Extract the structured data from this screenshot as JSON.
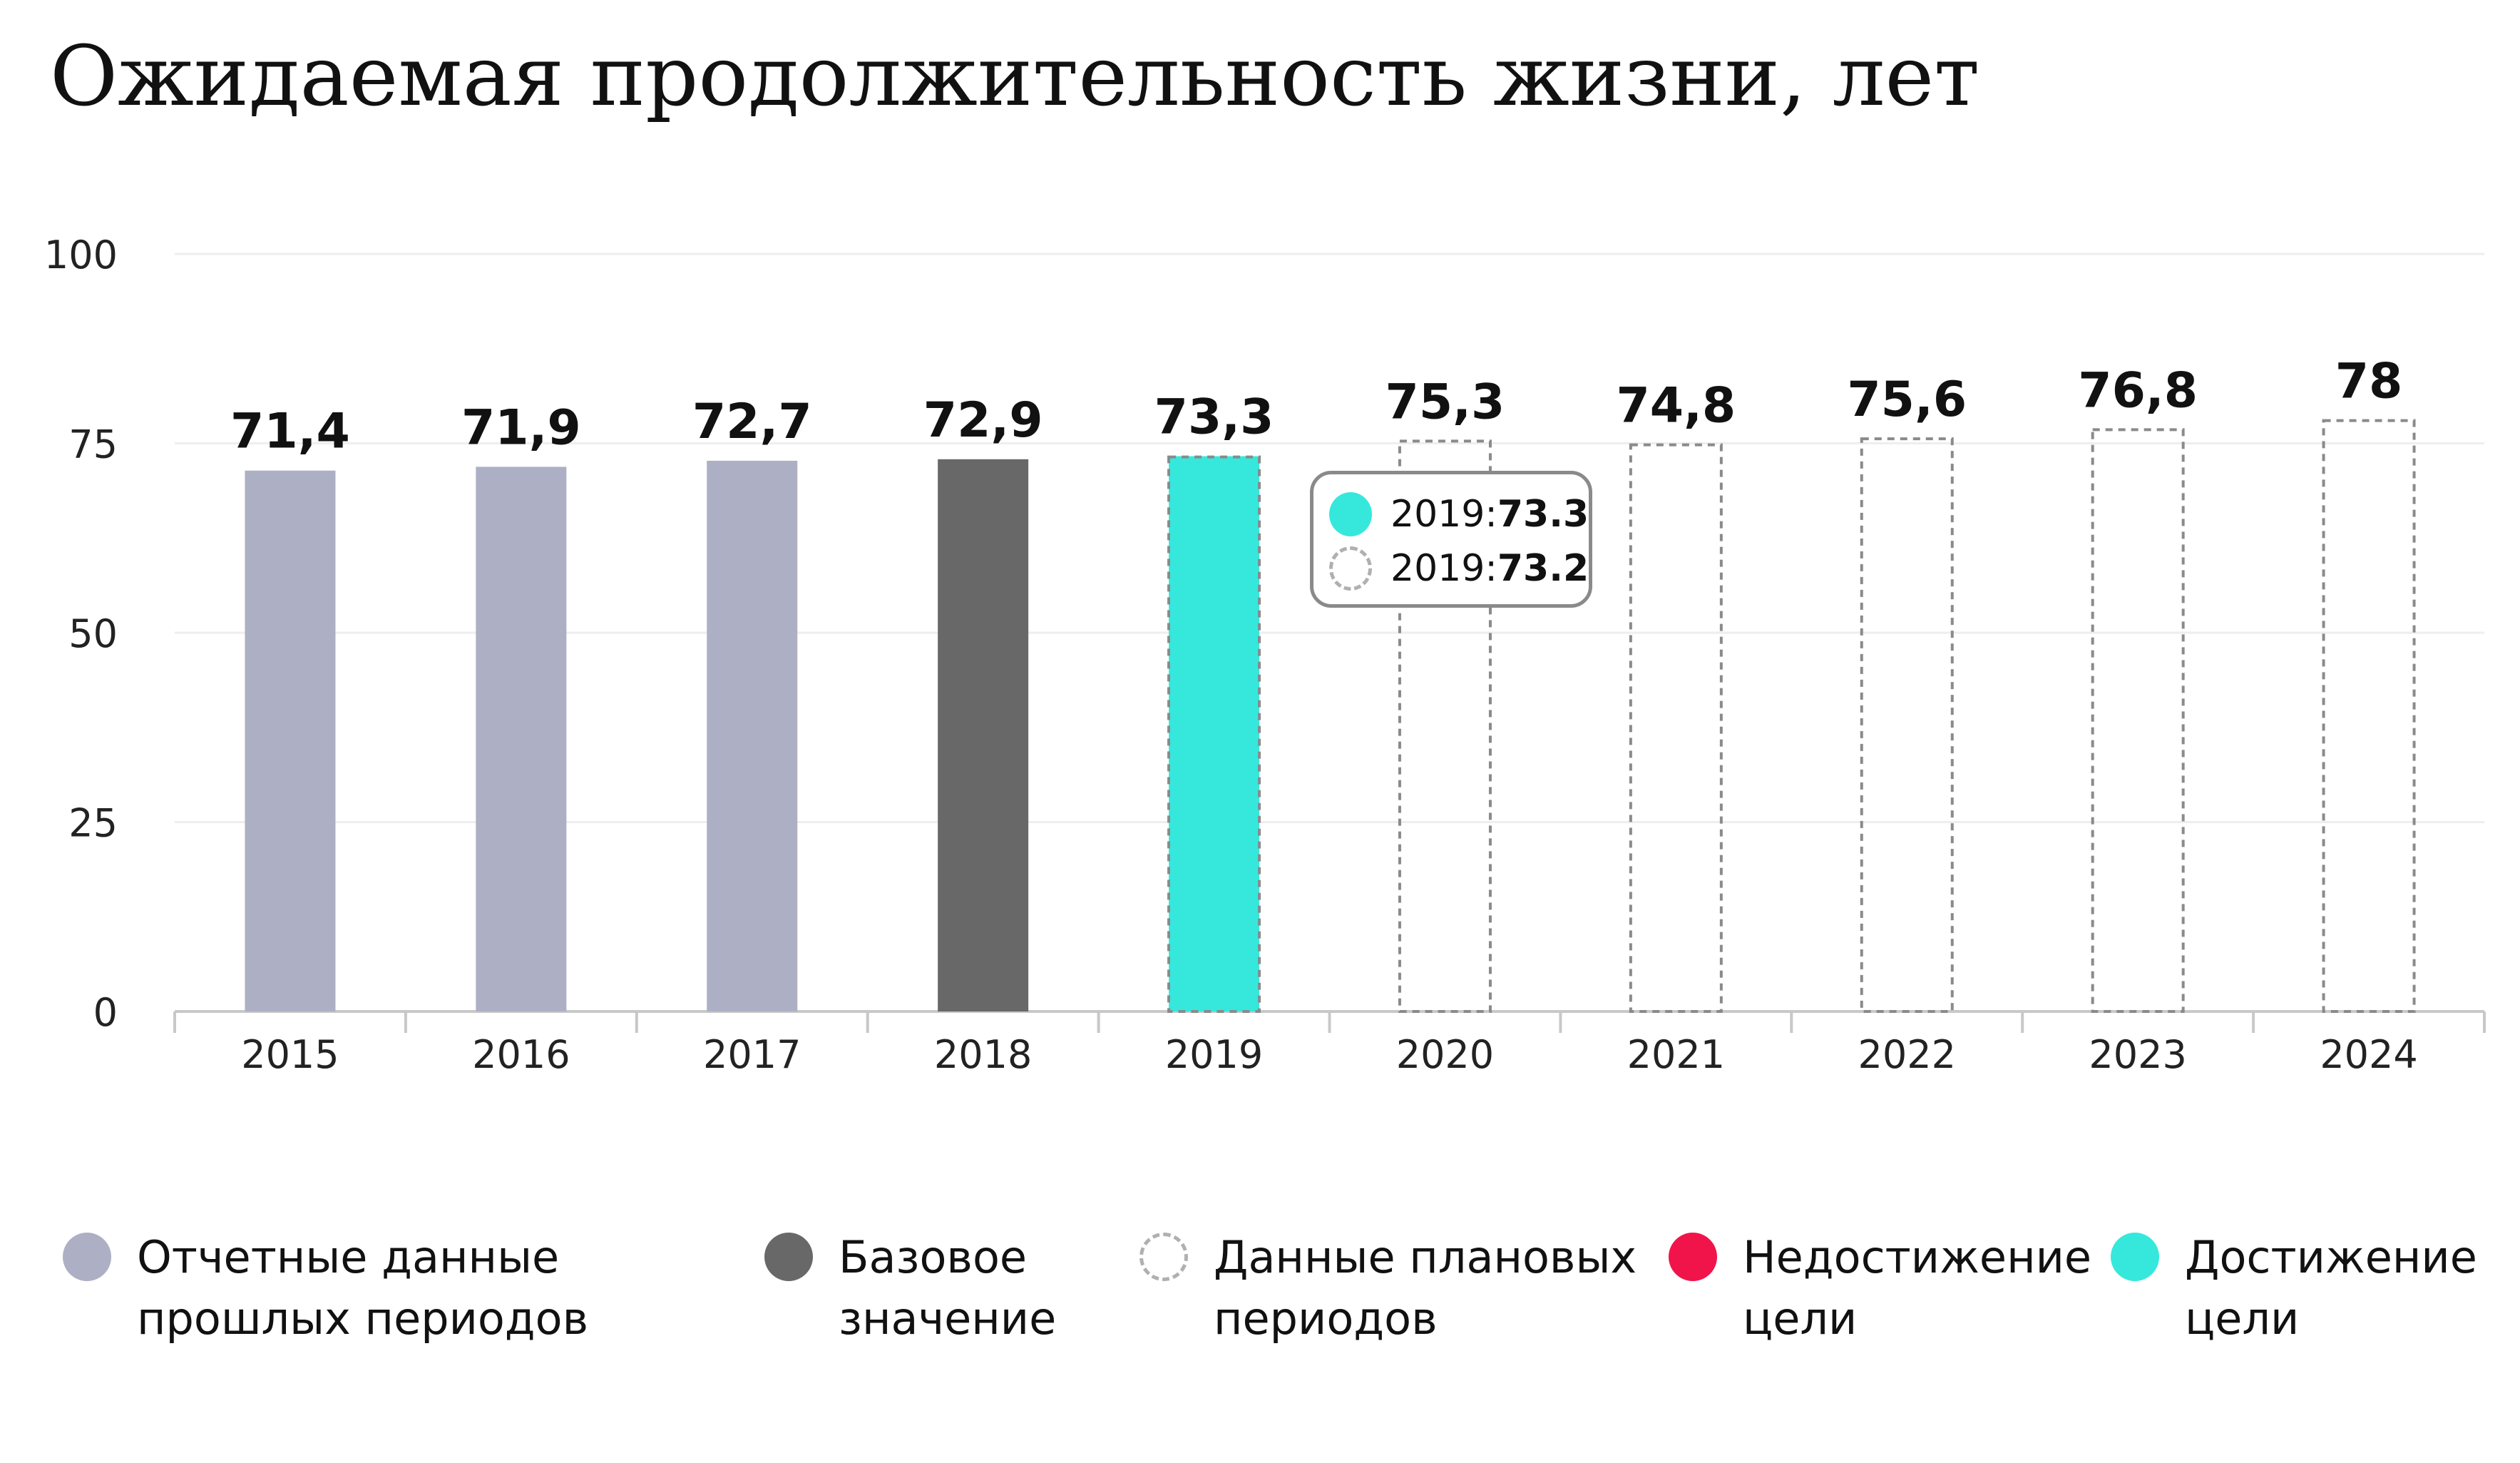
{
  "title": "Ожидаемая продолжительность жизни, лет",
  "colors": {
    "past": "#adafc4",
    "base": "#686868",
    "achieved": "#36e8dc",
    "not_achieved": "#f0144a",
    "plan_border": "#8a8a8a",
    "grid": "#eeeeee"
  },
  "chart_data": {
    "type": "bar",
    "title": "Ожидаемая продолжительность жизни, лет",
    "xlabel": "",
    "ylabel": "",
    "ylim": [
      0,
      100
    ],
    "yticks": [
      "0",
      "25",
      "50",
      "75",
      "100"
    ],
    "ytick_values": [
      0,
      25,
      50,
      75,
      100
    ],
    "grid": true,
    "legend_position": "bottom",
    "categories": [
      "2015",
      "2016",
      "2017",
      "2018",
      "2019",
      "2020",
      "2021",
      "2022",
      "2023",
      "2024"
    ],
    "bars": [
      {
        "year": "2015",
        "value": 71.4,
        "label": "71,4",
        "kind": "past"
      },
      {
        "year": "2016",
        "value": 71.9,
        "label": "71,9",
        "kind": "past"
      },
      {
        "year": "2017",
        "value": 72.7,
        "label": "72,7",
        "kind": "past"
      },
      {
        "year": "2018",
        "value": 72.9,
        "label": "72,9",
        "kind": "base"
      },
      {
        "year": "2019",
        "value": 73.3,
        "label": "73,3",
        "kind": "achieved",
        "plan": 73.2
      },
      {
        "year": "2020",
        "value": 75.3,
        "label": "75,3",
        "kind": "plan"
      },
      {
        "year": "2021",
        "value": 74.8,
        "label": "74,8",
        "kind": "plan"
      },
      {
        "year": "2022",
        "value": 75.6,
        "label": "75,6",
        "kind": "plan"
      },
      {
        "year": "2023",
        "value": 76.8,
        "label": "76,8",
        "kind": "plan"
      },
      {
        "year": "2024",
        "value": 78,
        "label": "78",
        "kind": "plan"
      }
    ]
  },
  "tooltip": {
    "rows": [
      {
        "prefix": "2019: ",
        "value": "73.3",
        "kind": "achieved"
      },
      {
        "prefix": "2019: ",
        "value": "73.2",
        "kind": "plan"
      }
    ]
  },
  "legend": [
    {
      "label": "Отчетные данные прошлых периодов",
      "kind": "past"
    },
    {
      "label": "Базовое значение",
      "kind": "base"
    },
    {
      "label": "Данные плановых периодов",
      "kind": "plan"
    },
    {
      "label": "Недостижение цели",
      "kind": "not_achieved"
    },
    {
      "label": "Достижение цели",
      "kind": "achieved"
    }
  ]
}
